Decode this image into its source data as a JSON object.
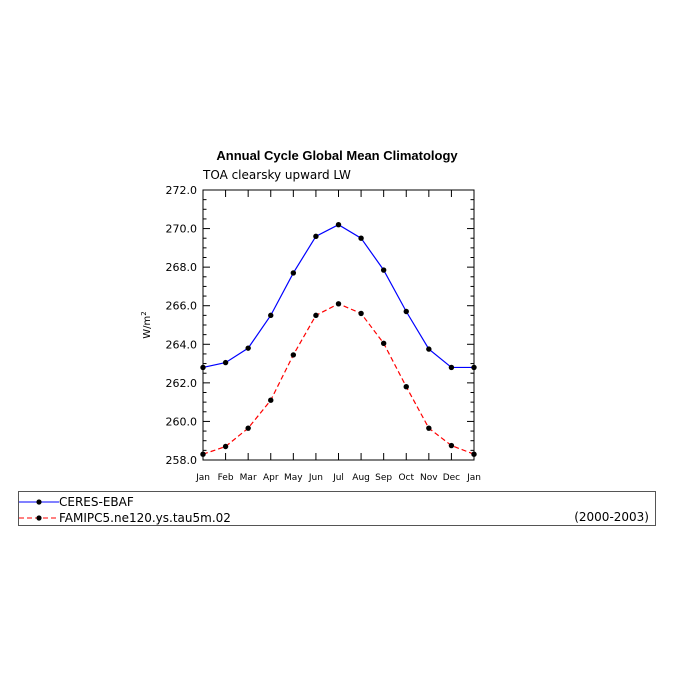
{
  "chart_data": {
    "type": "line",
    "title": "Annual Cycle Global Mean Climatology",
    "subtitle": "TOA clearsky upward LW",
    "ylabel": "W/m",
    "ylabel_sup": "2",
    "categories": [
      "Jan",
      "Feb",
      "Mar",
      "Apr",
      "May",
      "Jun",
      "Jul",
      "Aug",
      "Sep",
      "Oct",
      "Nov",
      "Dec",
      "Jan"
    ],
    "ylim": [
      258.0,
      272.0
    ],
    "yticks": [
      "258.0",
      "260.0",
      "262.0",
      "264.0",
      "266.0",
      "268.0",
      "270.0",
      "272.0"
    ],
    "grid": false,
    "legend_placement": "bottom",
    "series": [
      {
        "name": "CERES-EBAF",
        "color": "#0000ff",
        "style": "solid",
        "values": [
          262.8,
          263.05,
          263.8,
          265.5,
          267.7,
          269.6,
          270.2,
          269.5,
          267.85,
          265.7,
          263.75,
          262.8,
          262.8
        ]
      },
      {
        "name": "FAMIPC5.ne120.ys.tau5m.02",
        "color": "#ff0000",
        "style": "dashed",
        "values": [
          258.3,
          258.7,
          259.65,
          261.1,
          263.45,
          265.5,
          266.1,
          265.6,
          264.05,
          261.8,
          259.65,
          258.75,
          258.3
        ]
      }
    ]
  },
  "legend": {
    "items": [
      {
        "label": "CERES-EBAF",
        "color": "#0000ff"
      },
      {
        "label": "FAMIPC5.ne120.ys.tau5m.02",
        "color": "#ff0000"
      }
    ],
    "period": "(2000-2003)"
  }
}
